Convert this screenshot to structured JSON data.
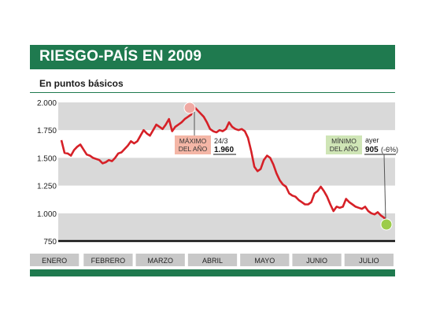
{
  "header": {
    "title": "RIESGO-PAÍS EN 2009",
    "subtitle": "En puntos básicos"
  },
  "colors": {
    "brand": "#1f7a4f",
    "line": "#d62027",
    "band": "#d9d9d9",
    "month_box": "#c8c8c8"
  },
  "annotations": {
    "max": {
      "label_line1": "MÁXIMO",
      "label_line2": "DEL AÑO",
      "date": "24/3",
      "value_text": "1.960"
    },
    "min": {
      "label_line1": "MÍNIMO",
      "label_line2": "DEL AÑO",
      "date": "ayer",
      "value_text": "905",
      "change_text": "(-6%)"
    }
  },
  "chart_data": {
    "type": "line",
    "title": "RIESGO-PAÍS EN 2009",
    "subtitle": "En puntos básicos",
    "xlabel": "",
    "ylabel": "",
    "y_ticks": [
      2000,
      1750,
      1500,
      1250,
      1000,
      750
    ],
    "y_tick_labels": [
      "2.000",
      "1.750",
      "1.500",
      "1.250",
      "1.000",
      "750"
    ],
    "ylim": [
      750,
      2000
    ],
    "x_ticks": [
      "ENERO",
      "FEBRERO",
      "MARZO",
      "ABRIL",
      "MAYO",
      "JUNIO",
      "JULIO"
    ],
    "grid": "alternating horizontal bands",
    "legend": "none",
    "series": [
      {
        "x": [
          1,
          3,
          5,
          7,
          9,
          11,
          13,
          15,
          17,
          19,
          21,
          23,
          25,
          27,
          29,
          31,
          33,
          35,
          37,
          39,
          41,
          43,
          45,
          47,
          49,
          51,
          53,
          55,
          57,
          59,
          61,
          63,
          65,
          67,
          69,
          71,
          73,
          75,
          77,
          79,
          81,
          83,
          85,
          87,
          89,
          91,
          93,
          95,
          97,
          99,
          101,
          103,
          105,
          107,
          109,
          111,
          113,
          115,
          117,
          119,
          121,
          123,
          125,
          127,
          129,
          131,
          133,
          135,
          137,
          139,
          141,
          143,
          145,
          147,
          149,
          151,
          153,
          155,
          157,
          159,
          161,
          163,
          165,
          167,
          169,
          171,
          173,
          175,
          177,
          179,
          181,
          183,
          185,
          187,
          189,
          191,
          193,
          195,
          197,
          199,
          201,
          203,
          205,
          207
        ],
        "values": [
          1660,
          1545,
          1540,
          1520,
          1570,
          1600,
          1620,
          1575,
          1530,
          1520,
          1500,
          1490,
          1480,
          1450,
          1460,
          1480,
          1470,
          1500,
          1540,
          1550,
          1580,
          1610,
          1650,
          1630,
          1650,
          1700,
          1750,
          1720,
          1700,
          1750,
          1800,
          1780,
          1760,
          1800,
          1850,
          1740,
          1780,
          1800,
          1820,
          1850,
          1870,
          1890,
          1960,
          1930,
          1900,
          1870,
          1820,
          1760,
          1740,
          1730,
          1750,
          1740,
          1760,
          1820,
          1780,
          1760,
          1750,
          1760,
          1740,
          1680,
          1560,
          1420,
          1380,
          1400,
          1480,
          1520,
          1500,
          1440,
          1360,
          1300,
          1260,
          1240,
          1180,
          1160,
          1150,
          1120,
          1100,
          1080,
          1080,
          1100,
          1180,
          1200,
          1240,
          1200,
          1150,
          1080,
          1020,
          1060,
          1050,
          1060,
          1130,
          1100,
          1080,
          1060,
          1050,
          1040,
          1060,
          1020,
          1000,
          990,
          1010,
          980,
          960,
          905
        ]
      }
    ]
  }
}
